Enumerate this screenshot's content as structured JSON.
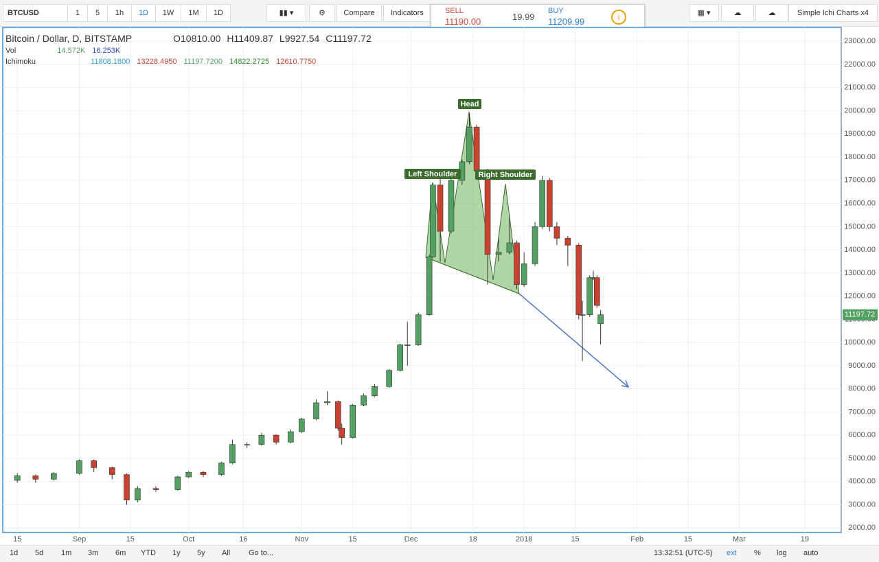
{
  "toolbar": {
    "symbol": "BTCUSD",
    "intervals": [
      "1",
      "5",
      "1h",
      "1D",
      "1W",
      "1M",
      "1D"
    ],
    "compare": "Compare",
    "indicators": "Indicators",
    "sell_label": "SELL",
    "sell_price": "11190.00",
    "spread": "19.99",
    "buy_label": "BUY",
    "buy_price": "11209.99",
    "layout_name": "Simple Ichi Charts x4"
  },
  "legend": {
    "title": "Bitcoin / Dollar, D, BITSTAMP",
    "ohlc": [
      {
        "label": "O",
        "value": "10810.00"
      },
      {
        "label": "H",
        "value": "11409.87"
      },
      {
        "label": "L",
        "value": "9927.54"
      },
      {
        "label": "C",
        "value": "11197.72"
      }
    ],
    "vol_name": "Vol",
    "vol_values": [
      "14.572K",
      "16.253K"
    ],
    "ichimoku_name": "Ichimoku",
    "ichimoku_values": [
      "11808.1800",
      "13228.4950",
      "11197.7200",
      "14822.2725",
      "12610.7750"
    ]
  },
  "chart_data": {
    "type": "candlestick",
    "up_color": "#53a063",
    "down_color": "#c9412f",
    "x": [
      -139,
      -134,
      -129,
      -122,
      -118,
      -113,
      -109,
      -106,
      -101,
      -95,
      -92,
      -88,
      -83,
      -80,
      -76,
      -72,
      -68,
      -64,
      -61,
      -57,
      -54,
      -51,
      -50,
      -47,
      -44,
      -41,
      -37,
      -34,
      -32,
      -29,
      -26,
      -25,
      -23,
      -20,
      -17,
      -15,
      -13,
      -10,
      -7,
      -4,
      -2,
      0,
      3,
      5,
      7,
      9,
      12,
      15,
      16,
      18,
      19,
      20,
      21
    ],
    "open": [
      4050,
      4250,
      4100,
      4350,
      4900,
      4600,
      4300,
      3200,
      3700,
      3650,
      4200,
      4400,
      4300,
      4800,
      5600,
      5600,
      6000,
      5700,
      6150,
      6700,
      7400,
      7450,
      6300,
      5900,
      7300,
      7700,
      8100,
      8800,
      9900,
      9900,
      11200,
      13700,
      16800,
      14800,
      17000,
      17800,
      19300,
      17400,
      13800,
      13900,
      14300,
      12500,
      13400,
      15000,
      17000,
      15000,
      14500,
      14200,
      11200,
      11200,
      12800,
      12800,
      10810
    ],
    "high": [
      4350,
      4300,
      4400,
      4950,
      4950,
      4650,
      4350,
      3800,
      3800,
      4250,
      4450,
      4450,
      4850,
      5800,
      5700,
      6100,
      6050,
      6250,
      6750,
      7550,
      7900,
      7500,
      6500,
      7350,
      7800,
      8200,
      8850,
      9950,
      10900,
      11300,
      13800,
      16900,
      17200,
      17400,
      17900,
      19900,
      19400,
      17500,
      14500,
      15500,
      14400,
      13900,
      15200,
      17200,
      17100,
      15200,
      14600,
      14300,
      11800,
      12900,
      13100,
      12900,
      11409.87
    ],
    "low": [
      3950,
      3950,
      4050,
      4300,
      4400,
      4100,
      3000,
      3100,
      3550,
      3600,
      4150,
      4200,
      4250,
      4750,
      5450,
      5550,
      5600,
      5650,
      6100,
      6650,
      7300,
      6200,
      5600,
      5850,
      7250,
      7650,
      8050,
      8750,
      9000,
      9850,
      11150,
      13650,
      13500,
      14700,
      16800,
      17700,
      17100,
      12500,
      13500,
      13800,
      12300,
      12400,
      13300,
      14900,
      14800,
      14200,
      13300,
      11000,
      9200,
      11100,
      12700,
      11500,
      9927.54
    ],
    "close": [
      4250,
      4100,
      4350,
      4900,
      4600,
      4300,
      3200,
      3700,
      3650,
      4200,
      4400,
      4300,
      4800,
      5600,
      5600,
      6000,
      5700,
      6150,
      6700,
      7400,
      7450,
      6300,
      5900,
      7300,
      7700,
      8100,
      8800,
      9900,
      9900,
      11200,
      13700,
      16800,
      14800,
      17000,
      17800,
      19300,
      17400,
      13800,
      13900,
      14300,
      12500,
      13400,
      15000,
      17000,
      15000,
      14500,
      14200,
      11200,
      11200,
      12800,
      12800,
      11600,
      11197.72
    ],
    "xlim": [
      -143,
      87
    ],
    "xticks": [
      {
        "value": -139,
        "label": "15"
      },
      {
        "value": -122,
        "label": "Sep"
      },
      {
        "value": -108,
        "label": "15"
      },
      {
        "value": -92,
        "label": "Oct"
      },
      {
        "value": -77,
        "label": "16"
      },
      {
        "value": -61,
        "label": "Nov"
      },
      {
        "value": -47,
        "label": "15"
      },
      {
        "value": -31,
        "label": "Dec"
      },
      {
        "value": -14,
        "label": "18"
      },
      {
        "value": 0,
        "label": "2018"
      },
      {
        "value": 14,
        "label": "15"
      },
      {
        "value": 31,
        "label": "Feb"
      },
      {
        "value": 45,
        "label": "15"
      },
      {
        "value": 59,
        "label": "Mar"
      },
      {
        "value": 77,
        "label": "19"
      }
    ],
    "ylim": [
      1800,
      23600
    ],
    "yticks": [
      {
        "value": 2000,
        "label": "2000.00"
      },
      {
        "value": 3000,
        "label": "3000.00"
      },
      {
        "value": 4000,
        "label": "4000.00"
      },
      {
        "value": 5000,
        "label": "5000.00"
      },
      {
        "value": 6000,
        "label": "6000.00"
      },
      {
        "value": 7000,
        "label": "7000.00"
      },
      {
        "value": 8000,
        "label": "8000.00"
      },
      {
        "value": 9000,
        "label": "9000.00"
      },
      {
        "value": 10000,
        "label": "10000.00"
      },
      {
        "value": 11000,
        "label": "11000.00"
      },
      {
        "value": 12000,
        "label": "12000.00"
      },
      {
        "value": 13000,
        "label": "13000.00"
      },
      {
        "value": 14000,
        "label": "14000.00"
      },
      {
        "value": 15000,
        "label": "15000.00"
      },
      {
        "value": 16000,
        "label": "16000.00"
      },
      {
        "value": 17000,
        "label": "17000.00"
      },
      {
        "value": 18000,
        "label": "18000.00"
      },
      {
        "value": 19000,
        "label": "19000.00"
      },
      {
        "value": 20000,
        "label": "20000.00"
      },
      {
        "value": 21000,
        "label": "21000.00"
      },
      {
        "value": 22000,
        "label": "22000.00"
      },
      {
        "value": 23000,
        "label": "23000.00"
      }
    ],
    "grid": true,
    "last_price": {
      "value": 11197.72,
      "label": "11197.72"
    },
    "annotations": [
      "Head",
      "Left Shoulder",
      "Right Shoulder"
    ]
  },
  "bottom_bar": {
    "ranges": [
      "1d",
      "5d",
      "1m",
      "3m",
      "6m",
      "YTD",
      "1y",
      "5y",
      "All"
    ],
    "goto": "Go to...",
    "time": "13:32:51 (UTC-5)",
    "options": [
      "ext",
      "%",
      "log",
      "auto"
    ]
  }
}
